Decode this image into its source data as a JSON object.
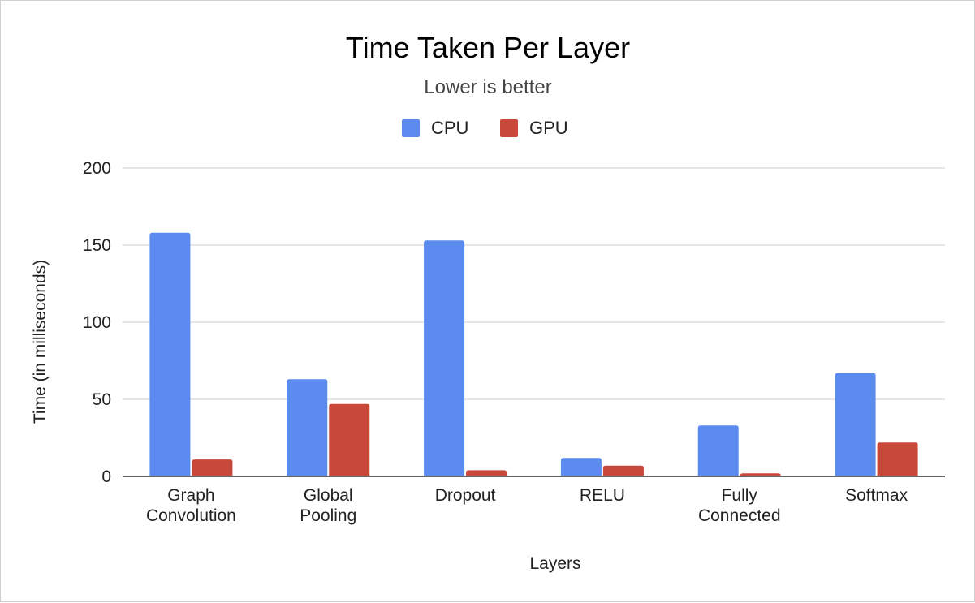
{
  "chart_data": {
    "type": "bar",
    "title": "Time Taken Per Layer",
    "subtitle": "Lower is better",
    "xlabel": "Layers",
    "ylabel": "Time (in milliseconds)",
    "categories": [
      [
        "Graph",
        "Convolution"
      ],
      [
        "Global",
        "Pooling"
      ],
      [
        "Dropout"
      ],
      [
        "RELU"
      ],
      [
        "Fully",
        "Connected"
      ],
      [
        "Softmax"
      ]
    ],
    "series": [
      {
        "name": "CPU",
        "color": "#5B8BEE",
        "values": [
          158,
          63,
          153,
          12,
          33,
          67
        ]
      },
      {
        "name": "GPU",
        "color": "#C8493A",
        "values": [
          11,
          47,
          4,
          7,
          2,
          22
        ]
      }
    ],
    "ylim": [
      0,
      200
    ],
    "yticks": [
      "0",
      "50",
      "100",
      "150",
      "200"
    ],
    "grid": true,
    "legend_position": "top-center"
  }
}
